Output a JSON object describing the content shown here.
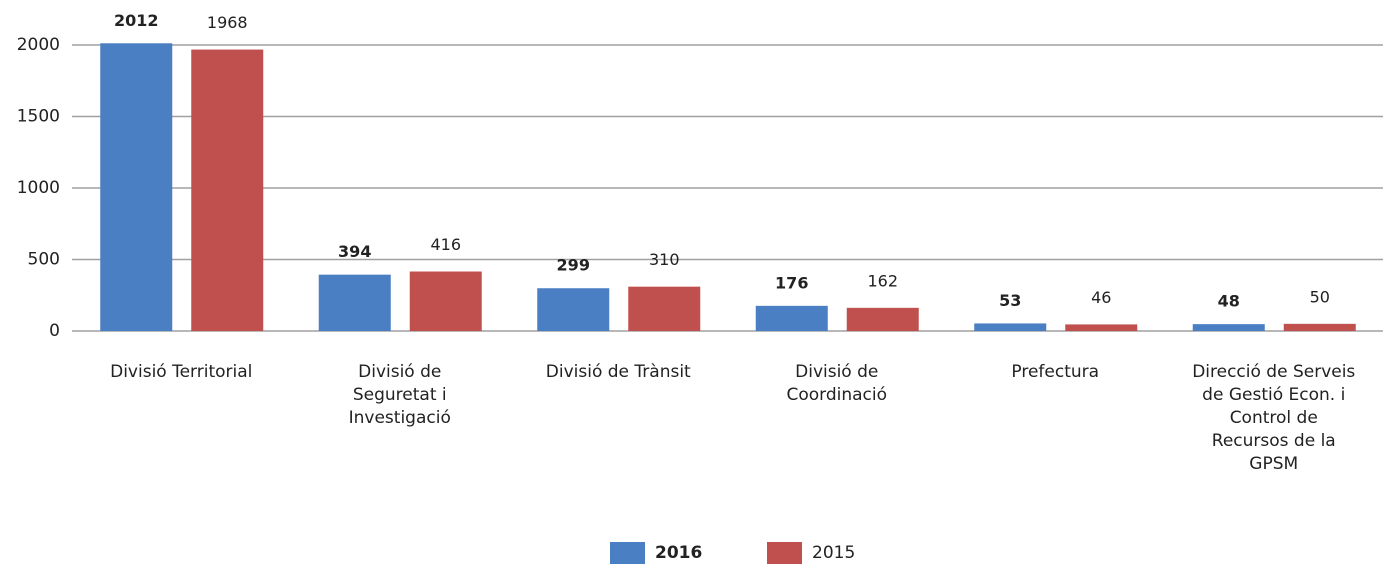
{
  "chart_data": {
    "type": "bar",
    "categories": [
      "Divisió Territorial",
      "Divisió de Seguretat i Investigació",
      "Divisió de Trànsit",
      "Divisió de Coordinació",
      "Prefectura",
      "Direcció de Serveis de Gestió Econ. i Control de Recursos de la GPSM"
    ],
    "series": [
      {
        "name": "2016",
        "color": "#4a7fc4",
        "values": [
          2012,
          394,
          299,
          176,
          53,
          48
        ]
      },
      {
        "name": "2015",
        "color": "#c0504d",
        "values": [
          1968,
          416,
          310,
          162,
          46,
          50
        ]
      }
    ],
    "ylim": [
      0,
      2000
    ],
    "yticks": [
      0,
      500,
      1000,
      1500,
      2000
    ],
    "grid": true,
    "legend": "bottom"
  }
}
